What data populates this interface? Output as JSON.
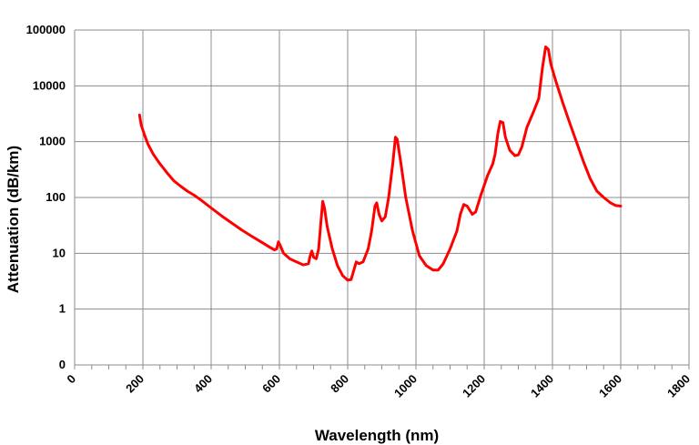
{
  "chart_data": {
    "type": "line",
    "xlabel": "Wavelength (nm)",
    "ylabel": "Attenuation (dB/km)",
    "title": "",
    "xlim": [
      0,
      1800
    ],
    "x_ticks": [
      "0",
      "200",
      "400",
      "600",
      "800",
      "1000",
      "1200",
      "1400",
      "1600",
      "1800"
    ],
    "y_scale": "log",
    "y_ticks": [
      "0",
      "1",
      "10",
      "100",
      "1000",
      "10000",
      "100000"
    ],
    "grid": true,
    "line_color": "#ff0000",
    "series": [
      {
        "points": [
          [
            190,
            3000
          ],
          [
            195,
            2000
          ],
          [
            205,
            1300
          ],
          [
            215,
            900
          ],
          [
            230,
            600
          ],
          [
            250,
            400
          ],
          [
            270,
            280
          ],
          [
            290,
            200
          ],
          [
            310,
            160
          ],
          [
            330,
            130
          ],
          [
            350,
            110
          ],
          [
            370,
            90
          ],
          [
            400,
            65
          ],
          [
            430,
            47
          ],
          [
            460,
            35
          ],
          [
            490,
            26
          ],
          [
            520,
            20
          ],
          [
            550,
            15.5
          ],
          [
            570,
            13
          ],
          [
            585,
            11.5
          ],
          [
            592,
            12
          ],
          [
            597,
            16
          ],
          [
            602,
            14
          ],
          [
            612,
            10
          ],
          [
            630,
            8
          ],
          [
            650,
            7
          ],
          [
            670,
            6.2
          ],
          [
            685,
            6.5
          ],
          [
            690,
            9
          ],
          [
            695,
            11
          ],
          [
            700,
            8.5
          ],
          [
            708,
            8
          ],
          [
            715,
            12
          ],
          [
            722,
            40
          ],
          [
            727,
            85
          ],
          [
            732,
            65
          ],
          [
            740,
            30
          ],
          [
            755,
            12
          ],
          [
            770,
            6
          ],
          [
            785,
            4
          ],
          [
            800,
            3.3
          ],
          [
            810,
            3.4
          ],
          [
            818,
            5
          ],
          [
            825,
            7
          ],
          [
            833,
            6.5
          ],
          [
            845,
            7
          ],
          [
            860,
            12
          ],
          [
            870,
            25
          ],
          [
            880,
            70
          ],
          [
            885,
            80
          ],
          [
            892,
            50
          ],
          [
            900,
            38
          ],
          [
            910,
            45
          ],
          [
            920,
            100
          ],
          [
            932,
            400
          ],
          [
            940,
            1200
          ],
          [
            945,
            1100
          ],
          [
            955,
            450
          ],
          [
            970,
            100
          ],
          [
            990,
            25
          ],
          [
            1010,
            9
          ],
          [
            1030,
            6
          ],
          [
            1050,
            5
          ],
          [
            1065,
            5
          ],
          [
            1080,
            6.5
          ],
          [
            1100,
            12
          ],
          [
            1120,
            25
          ],
          [
            1130,
            50
          ],
          [
            1140,
            75
          ],
          [
            1150,
            70
          ],
          [
            1165,
            50
          ],
          [
            1175,
            55
          ],
          [
            1190,
            110
          ],
          [
            1210,
            250
          ],
          [
            1225,
            400
          ],
          [
            1232,
            600
          ],
          [
            1240,
            1400
          ],
          [
            1247,
            2300
          ],
          [
            1255,
            2200
          ],
          [
            1262,
            1200
          ],
          [
            1275,
            700
          ],
          [
            1290,
            560
          ],
          [
            1300,
            580
          ],
          [
            1310,
            800
          ],
          [
            1325,
            1800
          ],
          [
            1345,
            3500
          ],
          [
            1360,
            6000
          ],
          [
            1370,
            20000
          ],
          [
            1380,
            50000
          ],
          [
            1388,
            45000
          ],
          [
            1395,
            25000
          ],
          [
            1410,
            12000
          ],
          [
            1430,
            5000
          ],
          [
            1450,
            2200
          ],
          [
            1470,
            1000
          ],
          [
            1490,
            450
          ],
          [
            1510,
            220
          ],
          [
            1530,
            130
          ],
          [
            1550,
            100
          ],
          [
            1570,
            80
          ],
          [
            1585,
            72
          ],
          [
            1600,
            70
          ]
        ]
      }
    ]
  }
}
